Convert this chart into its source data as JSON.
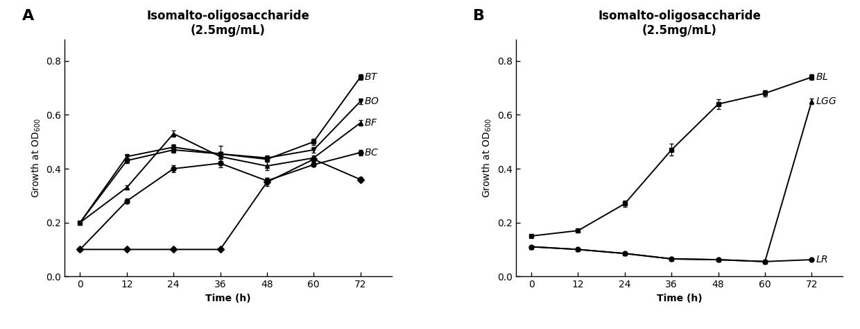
{
  "time": [
    0,
    12,
    24,
    36,
    48,
    60,
    72
  ],
  "panel_A": {
    "title_line1": "Isomalto-oligosaccharide",
    "title_line2": "(2.5mg/mL)",
    "series": [
      {
        "label": "BT",
        "y": [
          0.2,
          0.43,
          0.47,
          0.455,
          0.435,
          0.5,
          0.74
        ],
        "yerr": [
          0.005,
          0.008,
          0.01,
          0.008,
          0.008,
          0.012,
          0.01
        ],
        "marker": "s",
        "show_label": true
      },
      {
        "label": "BO",
        "y": [
          0.2,
          0.445,
          0.48,
          0.455,
          0.44,
          0.47,
          0.65
        ],
        "yerr": [
          0.005,
          0.008,
          0.01,
          0.008,
          0.008,
          0.01,
          0.01
        ],
        "marker": "v",
        "show_label": true
      },
      {
        "label": "BF",
        "y": [
          0.2,
          0.33,
          0.53,
          0.445,
          0.41,
          0.44,
          0.57
        ],
        "yerr": [
          0.005,
          0.008,
          0.012,
          0.04,
          0.015,
          0.008,
          0.01
        ],
        "marker": "^",
        "show_label": true
      },
      {
        "label": "BC",
        "y": [
          0.1,
          0.28,
          0.4,
          0.42,
          0.355,
          0.415,
          0.46
        ],
        "yerr": [
          0.005,
          0.008,
          0.012,
          0.008,
          0.012,
          0.008,
          0.01
        ],
        "marker": "o",
        "show_label": true
      },
      {
        "label": "",
        "y": [
          0.1,
          0.1,
          0.1,
          0.1,
          0.35,
          0.435,
          0.36
        ],
        "yerr": [
          0.003,
          0.003,
          0.003,
          0.003,
          0.015,
          0.008,
          0.01
        ],
        "marker": "D",
        "show_label": false
      }
    ],
    "ylabel": "Growth at OD$_{600}$",
    "xlabel": "Time (h)",
    "ylim": [
      0.0,
      0.88
    ],
    "yticks": [
      0.0,
      0.2,
      0.4,
      0.6,
      0.8
    ]
  },
  "panel_B": {
    "title_line1": "Isomalto-oligosaccharide",
    "title_line2": "(2.5mg/mL)",
    "series": [
      {
        "label": "BL",
        "y": [
          0.15,
          0.17,
          0.27,
          0.47,
          0.64,
          0.68,
          0.74
        ],
        "yerr": [
          0.005,
          0.006,
          0.012,
          0.022,
          0.018,
          0.012,
          0.01
        ],
        "marker": "s",
        "show_label": true
      },
      {
        "label": "LGG",
        "y": [
          0.11,
          0.1,
          0.085,
          0.065,
          0.062,
          0.055,
          0.65
        ],
        "yerr": [
          0.004,
          0.004,
          0.004,
          0.004,
          0.004,
          0.004,
          0.01
        ],
        "marker": "^",
        "show_label": true
      },
      {
        "label": "LR",
        "y": [
          0.11,
          0.1,
          0.085,
          0.065,
          0.062,
          0.055,
          0.062
        ],
        "yerr": [
          0.004,
          0.004,
          0.004,
          0.004,
          0.004,
          0.004,
          0.004
        ],
        "marker": "o",
        "show_label": true
      }
    ],
    "ylabel": "Growth at OD$_{600}$",
    "xlabel": "Time (h)",
    "ylim": [
      0.0,
      0.88
    ],
    "yticks": [
      0.0,
      0.2,
      0.4,
      0.6,
      0.8
    ]
  },
  "panel_labels": [
    "A",
    "B"
  ],
  "color": "#000000",
  "title_fontsize": 12,
  "label_fontsize": 10,
  "tick_fontsize": 10,
  "legend_fontsize": 10,
  "marker_size": 5,
  "linewidth": 1.4
}
